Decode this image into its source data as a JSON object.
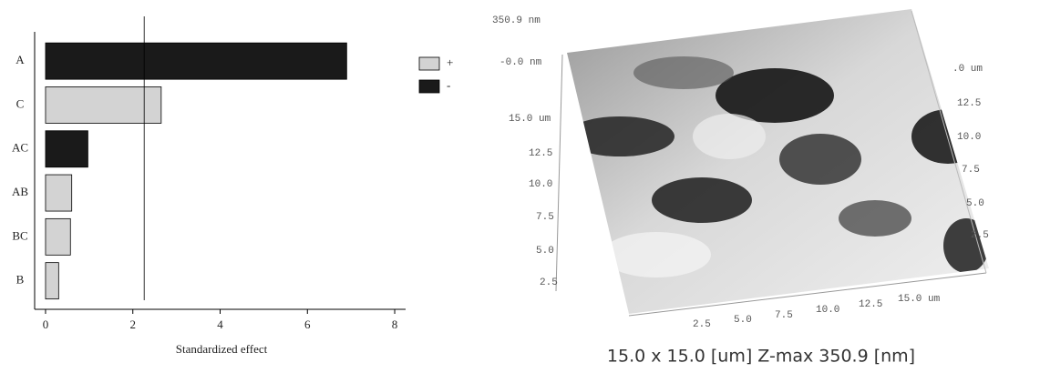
{
  "chart_data": {
    "type": "bar",
    "orientation": "horizontal",
    "x_label": "Standardized effect",
    "categories": [
      "A",
      "C",
      "AC",
      "AB",
      "BC",
      "B"
    ],
    "series": [
      {
        "name": "+",
        "color": "#d3d3d3",
        "values": [
          null,
          2.65,
          null,
          0.6,
          0.57,
          0.3
        ]
      },
      {
        "name": "-",
        "color": "#1a1a1a",
        "values": [
          6.9,
          null,
          0.97,
          null,
          null,
          null
        ]
      }
    ],
    "xlim": [
      -0.25,
      8.25
    ],
    "xticks": [
      0,
      2,
      4,
      6,
      8
    ],
    "reference_line": 2.26,
    "legend": "top-right"
  },
  "afm_image": {
    "z_labels": [
      "350.9 nm",
      "-0.0 nm"
    ],
    "left_axis_labels": [
      "15.0 um",
      "12.5",
      "10.0",
      "7.5",
      "5.0",
      "2.5"
    ],
    "bottom_axis_labels": [
      "2.5",
      "5.0",
      "7.5",
      "10.0",
      "12.5",
      "15.0 um"
    ],
    "right_axis_labels": [
      ".0 um",
      "12.5",
      "10.0",
      "7.5",
      "5.0",
      "2.5"
    ],
    "caption": "15.0 x 15.0 [um] Z-max 350.9 [nm]"
  }
}
